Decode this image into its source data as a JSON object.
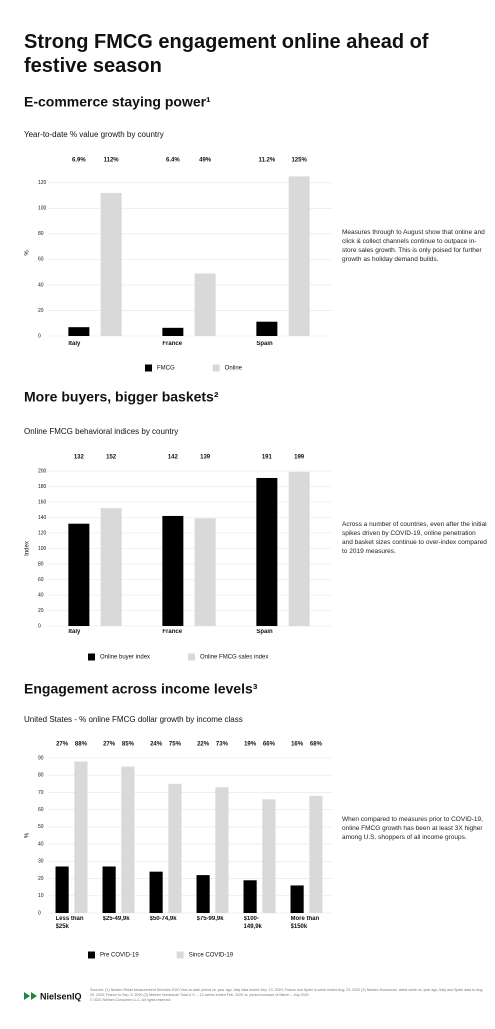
{
  "page": {
    "title": "Strong FMCG engagement online ahead of festive season",
    "logo": "NielsenIQ",
    "footnote": "Sources: (1) Nielsen Retail Measurement Services 2020 Year-to-date period vs. year ago, Italy data ended Sep. 13, 2020; France and Spain in week ended Aug. 23, 2020 (2) Nielsen Homescan, latest week vs. year ago, Italy and Spain data to Aug. 29, 2020; France to Sep. 5, 2020 (3) Nielsen Homescan Total U.S. – 12 weeks ended Feb. 2020 vs. period inclusive of March – July 2020",
    "copyright": "© 2021 Nielsen Consumer LLC. All rights reserved."
  },
  "chart_data": [
    {
      "type": "bar",
      "title": "E-commerce staying power¹",
      "subtitle": "Year-to-date % value growth by country",
      "ylabel": "%",
      "annotation": "Measures through to August show that online and click & collect channels continue to outpace in-store sales growth. This is only poised for further growth as holiday demand builds.",
      "categories": [
        "Italy",
        "France",
        "Spain"
      ],
      "series": [
        {
          "name": "FMCG",
          "color": "#000000",
          "values": [
            6.9,
            6.4,
            11.2
          ],
          "value_labels": [
            "6.9%",
            "6.4%",
            "11.2%"
          ]
        },
        {
          "name": "Online",
          "color": "#d9d9d9",
          "values": [
            112,
            49,
            125
          ],
          "value_labels": [
            "112%",
            "49%",
            "125%"
          ]
        }
      ],
      "ylim": [
        0,
        130
      ],
      "yticks": [
        0,
        20,
        40,
        60,
        80,
        100,
        120
      ],
      "grid": true
    },
    {
      "type": "bar",
      "title": "More buyers, bigger baskets²",
      "subtitle": "Online FMCG behavioral indices by country",
      "ylabel": "Index",
      "annotation": "Across a number of countries, even after the initial spikes driven by COVID-19, online penetration and basket sizes continue to over-index compared to 2019 measures.",
      "categories": [
        "Italy",
        "France",
        "Spain"
      ],
      "series": [
        {
          "name": "Online buyer index",
          "color": "#000000",
          "values": [
            132,
            142,
            191
          ]
        },
        {
          "name": "Online FMCG sales index",
          "color": "#d9d9d9",
          "values": [
            152,
            139,
            199
          ]
        }
      ],
      "ylim": [
        0,
        200
      ],
      "yticks": [
        0,
        20,
        40,
        60,
        80,
        100,
        120,
        140,
        160,
        180,
        200
      ],
      "grid": true
    },
    {
      "type": "bar",
      "title": "Engagement across income levels³",
      "subtitle": "United States - % online FMCG dollar growth by income class",
      "ylabel": "%",
      "annotation": "When compared to measures prior to COVID-19, online FMCG growth has been at least 3X higher among U.S. shoppers of all income groups.",
      "categories": [
        "Less than $25k",
        "$25-49,9k",
        "$50-74,9k",
        "$75-99,9k",
        "$100-149,9k",
        "More than $150k"
      ],
      "series": [
        {
          "name": "Pre COVID-19",
          "color": "#000000",
          "values": [
            27,
            27,
            24,
            22,
            19,
            16
          ],
          "value_labels": [
            "27%",
            "27%",
            "24%",
            "22%",
            "19%",
            "16%"
          ]
        },
        {
          "name": "Since COVID-19",
          "color": "#d9d9d9",
          "values": [
            88,
            85,
            75,
            73,
            66,
            68
          ],
          "value_labels": [
            "88%",
            "85%",
            "75%",
            "73%",
            "66%",
            "68%"
          ]
        }
      ],
      "ylim": [
        0,
        90
      ],
      "yticks": [
        0,
        10,
        20,
        30,
        40,
        50,
        60,
        70,
        80,
        90
      ],
      "grid": true
    }
  ]
}
